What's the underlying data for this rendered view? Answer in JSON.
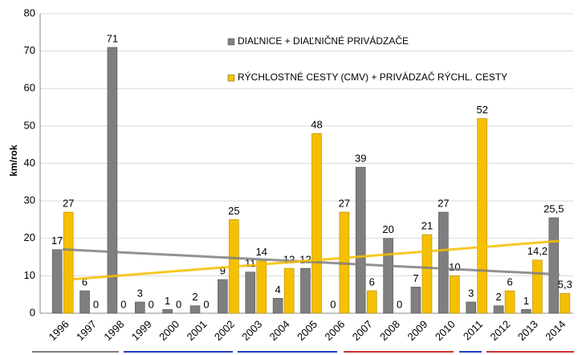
{
  "chart_data": {
    "type": "bar",
    "y_label": "km/rok",
    "categories": [
      "1996",
      "1997",
      "1998",
      "1999",
      "2000",
      "2001",
      "2002",
      "2003",
      "2004",
      "2005",
      "2006",
      "2007",
      "2008",
      "2009",
      "2010",
      "2011",
      "2012",
      "2013",
      "2014"
    ],
    "series": [
      {
        "name": "DIAĽNICE + DIAĽNIČNÉ PRIVÁDZAČE",
        "color": "#7f7f7f",
        "values": [
          17,
          6,
          71,
          3,
          1,
          2,
          9,
          11,
          4,
          12,
          0,
          39,
          20,
          7,
          27,
          3,
          2,
          1,
          25.5
        ],
        "value_labels": [
          "17",
          "6",
          "71",
          "3",
          "1",
          "2",
          "9",
          "11",
          "4",
          "12",
          "0",
          "39",
          "20",
          "7",
          "27",
          "3",
          "2",
          "1",
          "25,5"
        ]
      },
      {
        "name": "RÝCHLOSTNÉ CESTY (CMV) + PRIVÁDZAČ RÝCHL. CESTY",
        "color": "#f5c000",
        "values": [
          27,
          0,
          0,
          0,
          0,
          0,
          25,
          14,
          12,
          48,
          27,
          6,
          0,
          21,
          10,
          52,
          6,
          14.2,
          5.3
        ],
        "value_labels": [
          "27",
          "0",
          "0",
          "0",
          "0",
          "0",
          "25",
          "14",
          "12",
          "48",
          "27",
          "6",
          "0",
          "21",
          "10",
          "52",
          "6",
          "14,2",
          "5,3"
        ]
      }
    ],
    "trendline": true,
    "ylim": [
      0,
      80
    ],
    "yticks": [
      0,
      10,
      20,
      30,
      40,
      50,
      60,
      70,
      80
    ],
    "grid": true
  }
}
